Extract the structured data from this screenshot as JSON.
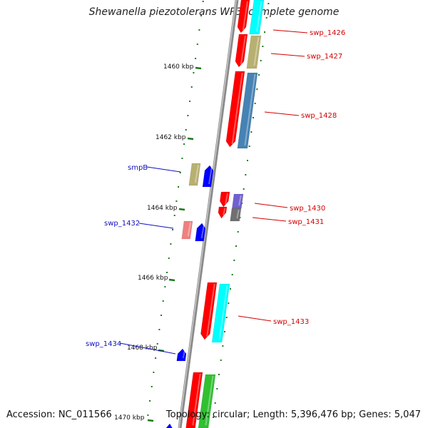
{
  "title": "Shewanella piezotolerans WP3, complete genome",
  "accession": "Accession: NC_011566",
  "summary": "Topology: circular; Length: 5,396,476 bp; Genes: 5,047",
  "colors": {
    "red": "#ff0000",
    "cyan": "#00ffff",
    "khaki": "#b8b070",
    "steelblue": "#4682b4",
    "blue": "#0000ff",
    "pink": "#f08080",
    "purple": "#7060d0",
    "gray": "#707070",
    "green": "#30c030",
    "tick": "#1a7a1a",
    "label_red": "#d40000",
    "label_blue": "#1010c0"
  },
  "ticks": [
    {
      "label": "1460 kbp"
    },
    {
      "label": "1462 kbp"
    },
    {
      "label": "1464 kbp"
    },
    {
      "label": "1466 kbp"
    },
    {
      "label": "1468 kbp"
    },
    {
      "label": "1470 kbp"
    }
  ],
  "gene_labels": [
    {
      "label": "swp_1426"
    },
    {
      "label": "swp_1427"
    },
    {
      "label": "swp_1428"
    },
    {
      "label": "smpB"
    },
    {
      "label": "swp_1430"
    },
    {
      "label": "swp_1431"
    },
    {
      "label": "swp_1432"
    },
    {
      "label": "swp_1433"
    },
    {
      "label": "swp_1434"
    }
  ]
}
